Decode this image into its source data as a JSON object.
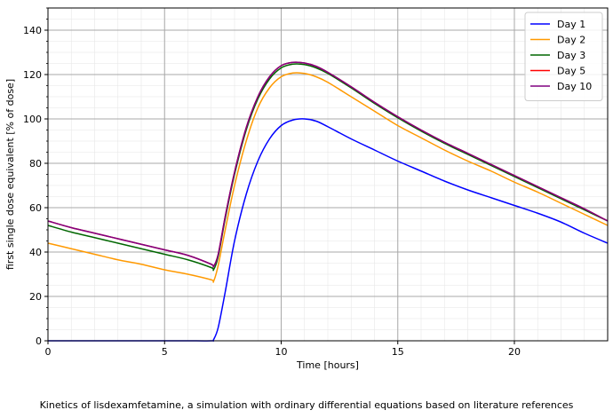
{
  "caption": "Kinetics of lisdexamfetamine, a simulation with ordinary differential equations based on literature references",
  "chart_data": {
    "type": "line",
    "title": "",
    "xlabel": "Time [hours]",
    "ylabel": "first single dose equivalent [% of dose]",
    "xlim": [
      0,
      24
    ],
    "ylim": [
      0,
      150
    ],
    "xticks": [
      0,
      5,
      10,
      15,
      20
    ],
    "yticks": [
      0,
      20,
      40,
      60,
      80,
      100,
      120,
      140
    ],
    "grid": true,
    "minor_grid": true,
    "legend_position": "top-right",
    "x": [
      0,
      1,
      2,
      3,
      4,
      5,
      6,
      7,
      7.1,
      7.3,
      7.6,
      8,
      8.5,
      9,
      9.5,
      10,
      10.5,
      11,
      11.5,
      12,
      13,
      14,
      15,
      16,
      17,
      18,
      19,
      20,
      21,
      22,
      23,
      24
    ],
    "series": [
      {
        "name": "Day 1",
        "color": "#0000ff",
        "values": [
          0,
          0,
          0,
          0,
          0,
          0,
          0,
          0,
          0.5,
          6,
          22,
          45,
          66,
          81,
          91,
          97,
          99.5,
          100,
          99,
          96.5,
          91,
          86,
          81,
          76.5,
          72,
          68,
          64.5,
          61,
          57.5,
          53.5,
          48.5,
          44
        ]
      },
      {
        "name": "Day 2",
        "color": "#ff9900",
        "values": [
          44,
          41.5,
          39,
          36.5,
          34.5,
          32,
          30,
          27.5,
          26.8,
          34,
          50,
          70,
          90,
          105,
          114,
          119,
          120.7,
          120.5,
          119,
          116.5,
          110,
          103.5,
          97,
          91.5,
          86,
          81,
          76.5,
          71.5,
          67,
          62,
          57,
          52
        ]
      },
      {
        "name": "Day 3",
        "color": "#006600",
        "values": [
          52,
          49,
          46.5,
          44,
          41.5,
          39,
          36.5,
          33,
          32,
          38,
          55,
          75,
          95,
          109,
          118,
          123,
          124.7,
          124.5,
          123,
          120.5,
          114,
          107,
          100.5,
          94.5,
          89,
          84,
          79,
          74,
          69,
          64,
          59,
          54
        ]
      },
      {
        "name": "Day 5",
        "color": "#ff0000",
        "values": [
          54,
          51,
          48.5,
          46,
          43.5,
          41,
          38.5,
          34.5,
          33.5,
          39,
          56,
          76,
          96,
          110,
          119,
          124,
          125.5,
          125.2,
          123.7,
          121,
          114.5,
          107.5,
          101,
          95,
          89.5,
          84.5,
          79.5,
          74.5,
          69.5,
          64.5,
          59.5,
          54
        ]
      },
      {
        "name": "Day 10",
        "color": "#800080",
        "values": [
          54,
          51,
          48.5,
          46,
          43.5,
          41,
          38.5,
          34.5,
          33.5,
          39,
          56,
          76,
          96,
          110,
          119,
          124,
          125.5,
          125.2,
          123.7,
          121,
          114.5,
          107.5,
          101,
          95,
          89.5,
          84.5,
          79.5,
          74.5,
          69.5,
          64.5,
          59.5,
          54
        ]
      }
    ]
  }
}
